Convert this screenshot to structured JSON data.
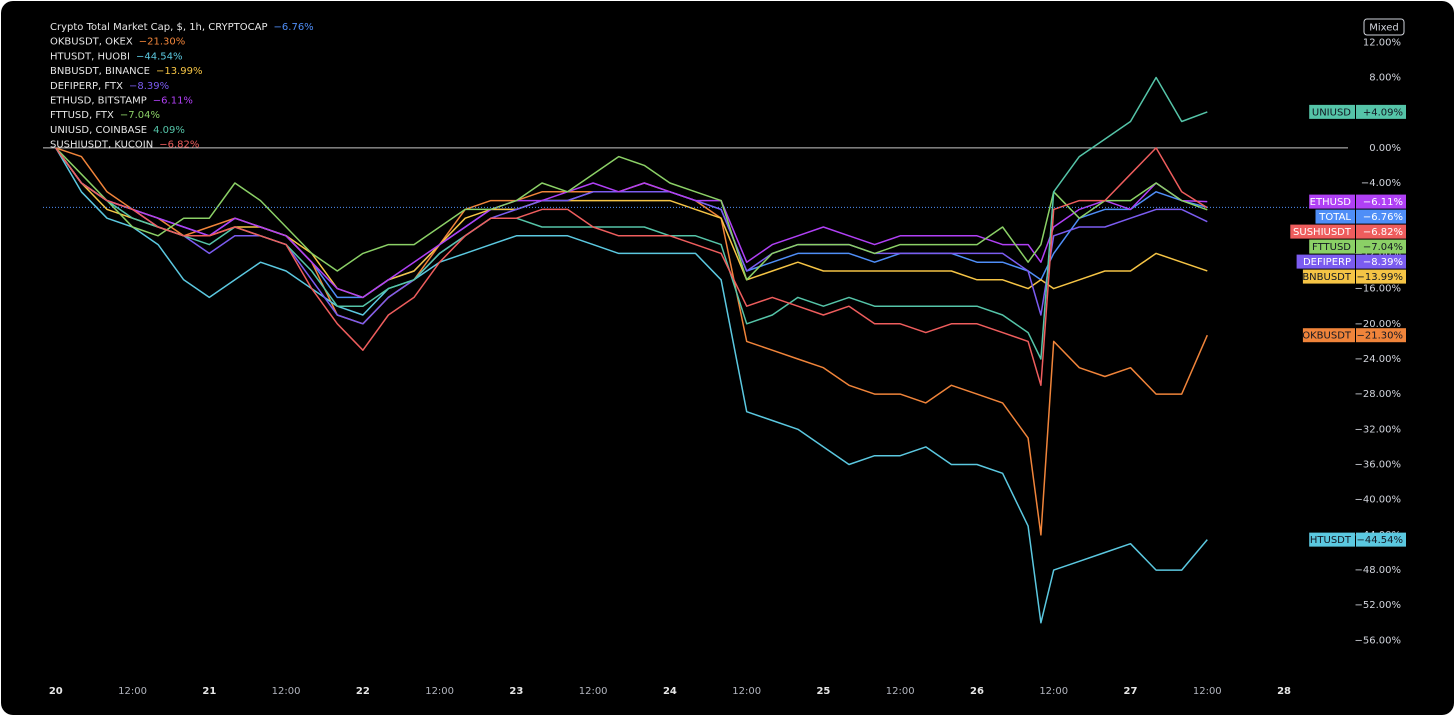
{
  "chart_data": {
    "type": "line",
    "scale_mode": "Mixed",
    "x": [
      0,
      4,
      8,
      12,
      16,
      20,
      24,
      28,
      32,
      36,
      40,
      44,
      48,
      52,
      56,
      60,
      64,
      68,
      72,
      76,
      80,
      84,
      88,
      92,
      96,
      100,
      104,
      108,
      112,
      116,
      120,
      124,
      128,
      132,
      136,
      140,
      144,
      148,
      152,
      154,
      156,
      160,
      164,
      168,
      172,
      176,
      180
    ],
    "xlim": [
      -2,
      202
    ],
    "xticks": [
      {
        "value": 0,
        "label": "20"
      },
      {
        "value": 12,
        "label": "12:00"
      },
      {
        "value": 24,
        "label": "21"
      },
      {
        "value": 36,
        "label": "12:00"
      },
      {
        "value": 48,
        "label": "22"
      },
      {
        "value": 60,
        "label": "12:00"
      },
      {
        "value": 72,
        "label": "23"
      },
      {
        "value": 84,
        "label": "12:00"
      },
      {
        "value": 96,
        "label": "24"
      },
      {
        "value": 108,
        "label": "12:00"
      },
      {
        "value": 120,
        "label": "25"
      },
      {
        "value": 132,
        "label": "12:00"
      },
      {
        "value": 144,
        "label": "26"
      },
      {
        "value": 156,
        "label": "12:00"
      },
      {
        "value": 168,
        "label": "27"
      },
      {
        "value": 180,
        "label": "12:00"
      },
      {
        "value": 192,
        "label": "28"
      }
    ],
    "ylim": [
      -60.5,
      15.9
    ],
    "yticks": [
      {
        "value": 12,
        "label": "12.00%"
      },
      {
        "value": 8,
        "label": "8.00%"
      },
      {
        "value": 4,
        "label": "4.00%"
      },
      {
        "value": 0,
        "label": "0.00%"
      },
      {
        "value": -4,
        "label": "−4.00%"
      },
      {
        "value": -8,
        "label": "−8.00%"
      },
      {
        "value": -12,
        "label": "−12.00%"
      },
      {
        "value": -16,
        "label": "−16.00%"
      },
      {
        "value": -20,
        "label": "−20.00%"
      },
      {
        "value": -24,
        "label": "−24.00%"
      },
      {
        "value": -28,
        "label": "−28.00%"
      },
      {
        "value": -32,
        "label": "−32.00%"
      },
      {
        "value": -36,
        "label": "−36.00%"
      },
      {
        "value": -40,
        "label": "−40.00%"
      },
      {
        "value": -44,
        "label": "−44.00%"
      },
      {
        "value": -48,
        "label": "−48.00%"
      },
      {
        "value": -52,
        "label": "−52.00%"
      },
      {
        "value": -56,
        "label": "−56.00%"
      }
    ],
    "series": [
      {
        "name": "TOTAL",
        "legend": "Crypto Total Market Cap, $, 1h, CRYPTOCAP",
        "legend_change": "−6.76%",
        "tag_change": "−6.76%",
        "color": "#4f8ef7",
        "values": [
          0,
          -4,
          -6,
          -7,
          -8,
          -9,
          -10,
          -8,
          -9,
          -10,
          -13,
          -17,
          -17,
          -15,
          -14,
          -11,
          -9,
          -7,
          -7,
          -6,
          -6,
          -5,
          -5,
          -5,
          -5,
          -6,
          -7,
          -14,
          -13,
          -12,
          -12,
          -12,
          -13,
          -12,
          -12,
          -12,
          -13,
          -13,
          -14,
          -15,
          -12,
          -8,
          -7,
          -7,
          -5,
          -6,
          -6.76
        ]
      },
      {
        "name": "OKBUSDT",
        "legend": "OKBUSDT, OKEX",
        "legend_change": "−21.30%",
        "tag_change": "−21.30%",
        "color": "#f0843a",
        "values": [
          0,
          -1,
          -5,
          -7,
          -8,
          -10,
          -9,
          -8,
          -9,
          -10,
          -13,
          -19,
          -20,
          -17,
          -15,
          -11,
          -7,
          -6,
          -6,
          -5,
          -5,
          -5,
          -5,
          -4,
          -5,
          -6,
          -8,
          -22,
          -23,
          -24,
          -25,
          -27,
          -28,
          -28,
          -29,
          -27,
          -28,
          -29,
          -33,
          -44,
          -22,
          -25,
          -26,
          -25,
          -28,
          -28,
          -21.3
        ]
      },
      {
        "name": "HTUSDT",
        "legend": "HTUSDT, HUOBI",
        "legend_change": "−44.54%",
        "tag_change": "−44.54%",
        "color": "#5bc8e0",
        "values": [
          0,
          -5,
          -8,
          -9,
          -11,
          -15,
          -17,
          -15,
          -13,
          -14,
          -16,
          -18,
          -19,
          -16,
          -15,
          -13,
          -12,
          -11,
          -10,
          -10,
          -10,
          -11,
          -12,
          -12,
          -12,
          -12,
          -15,
          -30,
          -31,
          -32,
          -34,
          -36,
          -35,
          -35,
          -34,
          -36,
          -36,
          -37,
          -43,
          -54,
          -48,
          -47,
          -46,
          -45,
          -48,
          -48,
          -44.54
        ]
      },
      {
        "name": "BNBUSDT",
        "legend": "BNBUSDT, BINANCE",
        "legend_change": "−13.99%",
        "tag_change": "−13.99%",
        "color": "#f5c445",
        "values": [
          0,
          -4,
          -7,
          -8,
          -9,
          -10,
          -10,
          -9,
          -9,
          -10,
          -12,
          -16,
          -17,
          -15,
          -14,
          -11,
          -8,
          -7,
          -7,
          -6,
          -6,
          -6,
          -6,
          -6,
          -6,
          -7,
          -8,
          -15,
          -14,
          -13,
          -14,
          -14,
          -14,
          -14,
          -14,
          -14,
          -15,
          -15,
          -16,
          -15,
          -16,
          -15,
          -14,
          -14,
          -12,
          -13,
          -13.99
        ]
      },
      {
        "name": "DEFIPERP",
        "legend": "DEFIPERP, FTX",
        "legend_change": "−8.39%",
        "tag_change": "−8.39%",
        "color": "#7b5cf0",
        "values": [
          0,
          -4,
          -6,
          -7,
          -9,
          -10,
          -12,
          -10,
          -10,
          -11,
          -15,
          -19,
          -20,
          -17,
          -15,
          -12,
          -10,
          -8,
          -7,
          -6,
          -6,
          -5,
          -5,
          -5,
          -5,
          -6,
          -7,
          -14,
          -12,
          -11,
          -11,
          -11,
          -12,
          -12,
          -12,
          -12,
          -12,
          -12,
          -14,
          -19,
          -10,
          -9,
          -9,
          -8,
          -7,
          -7,
          -8.39
        ]
      },
      {
        "name": "ETHUSD",
        "legend": "ETHUSD, BITSTAMP",
        "legend_change": "−6.11%",
        "tag_change": "−6.11%",
        "color": "#b040f5",
        "values": [
          0,
          -4,
          -6,
          -7,
          -8,
          -9,
          -10,
          -8,
          -9,
          -10,
          -13,
          -16,
          -17,
          -15,
          -13,
          -11,
          -9,
          -7,
          -6,
          -6,
          -5,
          -4,
          -5,
          -4,
          -5,
          -6,
          -6,
          -13,
          -11,
          -10,
          -9,
          -10,
          -11,
          -10,
          -10,
          -10,
          -10,
          -11,
          -11,
          -13,
          -9,
          -7,
          -6,
          -7,
          -4,
          -6,
          -6.11
        ]
      },
      {
        "name": "FTTUSD",
        "legend": "FTTUSD, FTX",
        "legend_change": "−7.04%",
        "tag_change": "−7.04%",
        "color": "#8bd066",
        "values": [
          0,
          -3,
          -6,
          -9,
          -10,
          -8,
          -8,
          -4,
          -6,
          -9,
          -12,
          -14,
          -12,
          -11,
          -11,
          -9,
          -7,
          -7,
          -6,
          -4,
          -5,
          -3,
          -1,
          -2,
          -4,
          -5,
          -6,
          -15,
          -12,
          -11,
          -11,
          -11,
          -12,
          -11,
          -11,
          -11,
          -11,
          -9,
          -13,
          -11,
          -5,
          -8,
          -6,
          -6,
          -4,
          -6,
          -7.04
        ]
      },
      {
        "name": "UNIUSD",
        "legend": "UNIUSD, COINBASE",
        "legend_change": "4.09%",
        "tag_change": "+4.09%",
        "color": "#55c4a8",
        "values": [
          0,
          -4,
          -6,
          -8,
          -9,
          -10,
          -11,
          -9,
          -10,
          -11,
          -14,
          -18,
          -18,
          -16,
          -15,
          -12,
          -10,
          -8,
          -8,
          -9,
          -9,
          -9,
          -9,
          -9,
          -10,
          -10,
          -11,
          -20,
          -19,
          -17,
          -18,
          -17,
          -18,
          -18,
          -18,
          -18,
          -18,
          -19,
          -21,
          -24,
          -5,
          -1,
          1,
          3,
          8,
          3,
          4.09
        ]
      },
      {
        "name": "SUSHIUSDT",
        "legend": "SUSHIUSDT, KUCOIN",
        "legend_change": "−6.82%",
        "tag_change": "−6.82%",
        "color": "#ee5d5d",
        "values": [
          0,
          -4,
          -6,
          -7,
          -9,
          -10,
          -10,
          -9,
          -10,
          -11,
          -16,
          -20,
          -23,
          -19,
          -17,
          -13,
          -10,
          -8,
          -8,
          -7,
          -7,
          -9,
          -10,
          -10,
          -10,
          -11,
          -12,
          -18,
          -17,
          -18,
          -19,
          -18,
          -20,
          -20,
          -21,
          -20,
          -20,
          -21,
          -22,
          -27,
          -7,
          -6,
          -6,
          -3,
          0,
          -5,
          -6.82
        ]
      }
    ]
  }
}
